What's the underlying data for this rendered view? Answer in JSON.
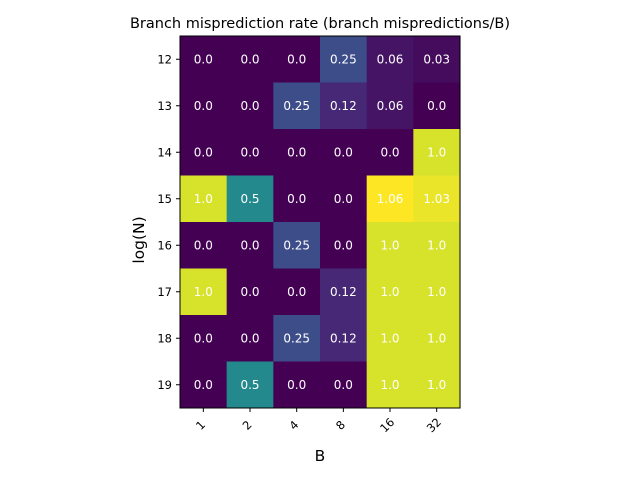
{
  "chart_data": {
    "type": "heatmap",
    "title": "Branch misprediction rate (branch mispredictions/B)",
    "xlabel": "B",
    "ylabel": "log(N)",
    "x_categories": [
      "1",
      "2",
      "4",
      "8",
      "16",
      "32"
    ],
    "y_categories": [
      "12",
      "13",
      "14",
      "15",
      "16",
      "17",
      "18",
      "19"
    ],
    "colormap": "viridis",
    "color_range": [
      0.0,
      1.06
    ],
    "values": [
      [
        0.0,
        0.0,
        0.0,
        0.25,
        0.06,
        0.03
      ],
      [
        0.0,
        0.0,
        0.25,
        0.12,
        0.06,
        0.0
      ],
      [
        0.0,
        0.0,
        0.0,
        0.0,
        0.0,
        1.0
      ],
      [
        1.0,
        0.5,
        0.0,
        0.0,
        1.06,
        1.03
      ],
      [
        0.0,
        0.0,
        0.25,
        0.0,
        1.0,
        1.0
      ],
      [
        1.0,
        0.0,
        0.0,
        0.12,
        1.0,
        1.0
      ],
      [
        0.0,
        0.0,
        0.25,
        0.12,
        1.0,
        1.0
      ],
      [
        0.0,
        0.5,
        0.0,
        0.0,
        1.0,
        1.0
      ]
    ],
    "value_labels": [
      [
        "0.0",
        "0.0",
        "0.0",
        "0.25",
        "0.06",
        "0.03"
      ],
      [
        "0.0",
        "0.0",
        "0.25",
        "0.12",
        "0.06",
        "0.0"
      ],
      [
        "0.0",
        "0.0",
        "0.0",
        "0.0",
        "0.0",
        "1.0"
      ],
      [
        "1.0",
        "0.5",
        "0.0",
        "0.0",
        "1.06",
        "1.03"
      ],
      [
        "0.0",
        "0.0",
        "0.25",
        "0.0",
        "1.0",
        "1.0"
      ],
      [
        "1.0",
        "0.0",
        "0.0",
        "0.12",
        "1.0",
        "1.0"
      ],
      [
        "0.0",
        "0.0",
        "0.25",
        "0.12",
        "1.0",
        "1.0"
      ],
      [
        "0.0",
        "0.5",
        "0.0",
        "0.0",
        "1.0",
        "1.0"
      ]
    ],
    "x_tick_rotation_deg": 45,
    "grid": false,
    "legend": "none"
  }
}
